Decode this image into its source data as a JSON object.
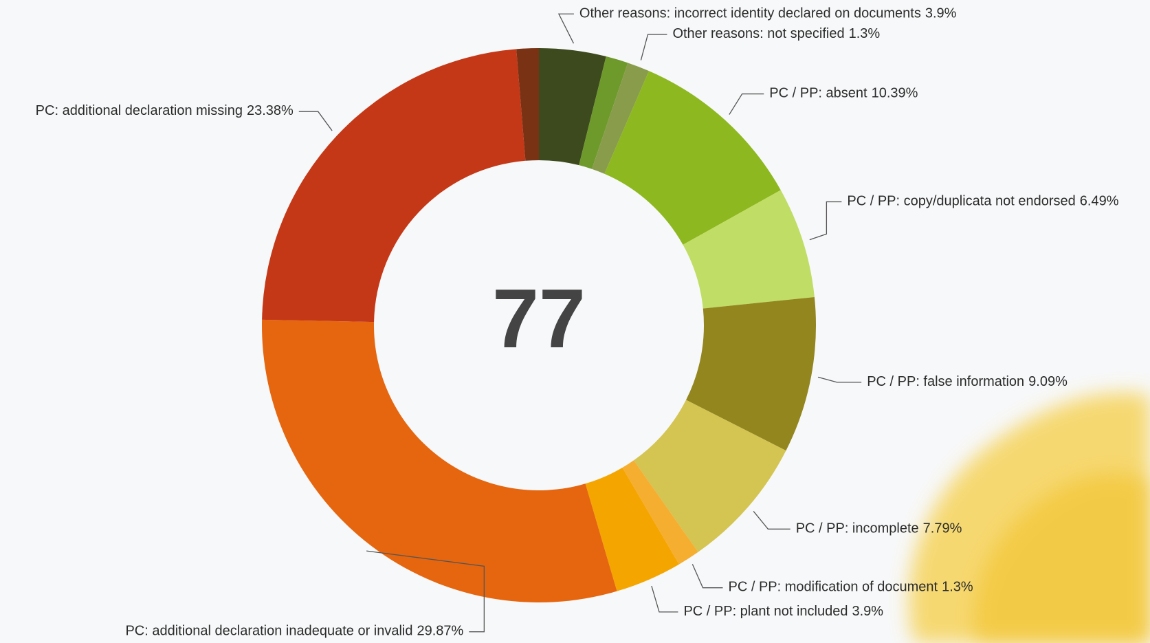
{
  "chart_data": {
    "type": "donut",
    "center_label": "77",
    "categories": [
      "Other reasons: incorrect identity declared on documents",
      null,
      "Other reasons: not specified",
      "PC / PP: absent",
      "PC / PP: copy/duplicata not endorsed",
      "PC / PP: false information",
      "PC / PP: incomplete",
      "PC / PP: modification of document",
      "PC / PP: plant not included",
      "PC: additional declaration inadequate or invalid",
      "PC: additional declaration missing",
      null
    ],
    "values": [
      3.9,
      1.3,
      1.3,
      10.39,
      6.49,
      9.09,
      7.79,
      1.3,
      3.9,
      29.87,
      23.38,
      1.3
    ],
    "value_labels": [
      "3.9%",
      null,
      "1.3%",
      "10.39%",
      "6.49%",
      "9.09%",
      "7.79%",
      "1.3%",
      "3.9%",
      "29.87%",
      "23.38%",
      null
    ],
    "colors": [
      "#3d4a1d",
      "#6e9a2c",
      "#899c4b",
      "#8db820",
      "#c0dd66",
      "#93861f",
      "#d4c452",
      "#f5ae30",
      "#f5a500",
      "#e5660f",
      "#c43817",
      "#7a3214"
    ]
  }
}
